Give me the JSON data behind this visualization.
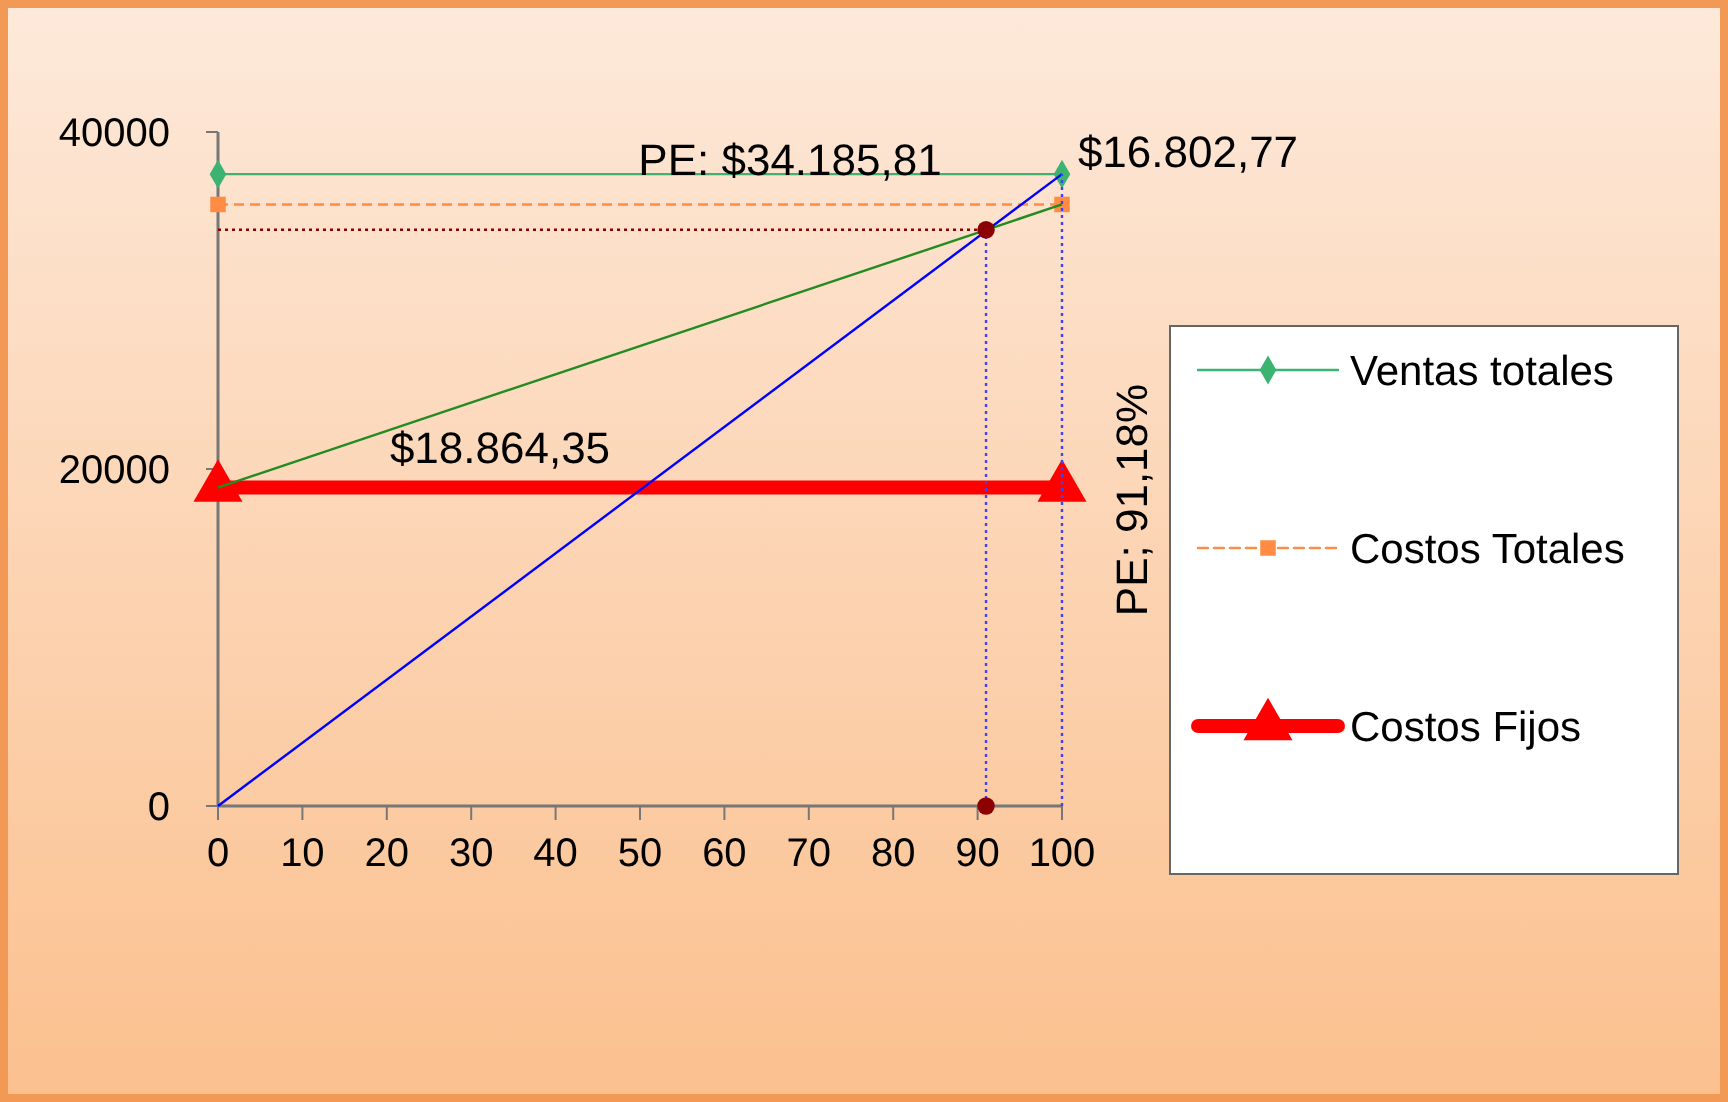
{
  "chart_data": {
    "type": "line",
    "xlim": [
      0,
      100
    ],
    "xticks": [
      0,
      10,
      20,
      30,
      40,
      50,
      60,
      70,
      80,
      90,
      100
    ],
    "ylim": [
      0,
      40000
    ],
    "yticks": [
      0,
      20000,
      40000
    ],
    "grid": false,
    "legend": "right",
    "series": [
      {
        "name": "Ventas totales",
        "color": "#3cb371",
        "x": [
          0,
          100
        ],
        "values": [
          37500,
          37500
        ],
        "marker": "diamond",
        "line_style": "solid"
      },
      {
        "name": "Costos Totales",
        "color": "#ff8c42",
        "x": [
          0,
          100
        ],
        "values": [
          35700,
          35700
        ],
        "marker": "square",
        "line_style": "dashed"
      },
      {
        "name": "Costos Fijos",
        "color": "#ff0000",
        "x": [
          0,
          100
        ],
        "values": [
          18900,
          18900
        ],
        "marker": "triangle",
        "line_style": "solid"
      },
      {
        "color": "#0000ff",
        "x": [
          0,
          100
        ],
        "values": [
          0,
          37500
        ],
        "marker": "none",
        "line_style": "solid"
      },
      {
        "color": "#228b22",
        "x": [
          0,
          100
        ],
        "values": [
          18900,
          35700
        ],
        "marker": "none",
        "line_style": "solid"
      },
      {
        "color": "#8b0000",
        "x": [
          0,
          91
        ],
        "values": [
          34200,
          34200
        ],
        "marker": "none",
        "line_style": "dotted"
      },
      {
        "color": "#4040ff",
        "x": [
          91,
          91
        ],
        "values": [
          0,
          34200
        ],
        "marker": "none",
        "line_style": "dotted"
      },
      {
        "color": "#4040ff",
        "x": [
          100,
          100
        ],
        "values": [
          0,
          37500
        ],
        "marker": "none",
        "line_style": "dotted"
      },
      {
        "type": "scatter",
        "color": "#8b0000",
        "x": [
          91,
          91
        ],
        "values": [
          34200,
          0
        ],
        "marker": "circle"
      }
    ],
    "annotations": [
      "PE: $34.185,81",
      "$16.802,77",
      "$18.864,35",
      "PE; 91,18%"
    ]
  }
}
